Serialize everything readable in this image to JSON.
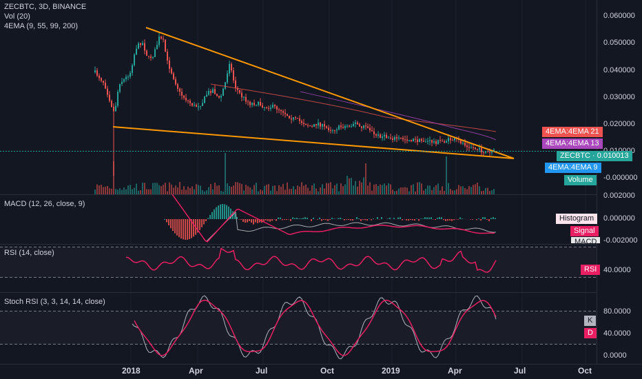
{
  "symbol_title": "ZECBTC, 3D, BINANCE",
  "indicators": {
    "vol": "Vol (20)",
    "ema": "4EMA (9, 55, 99, 200)",
    "macd": "MACD (12, 26, close, 9)",
    "rsi": "RSI (14, close)",
    "stoch": "Stoch RSI (3, 3, 14, 14, close)"
  },
  "price_axis": [
    "0.060000",
    "0.050000",
    "0.040000",
    "0.030000",
    "0.020000",
    "0.010000",
    "-0.000000"
  ],
  "macd_axis": [
    "0.002000",
    "0.000000",
    "-0.002000"
  ],
  "rsi_axis": [
    "40.0000"
  ],
  "stoch_axis": [
    "80.0000",
    "40.0000",
    "0.0000"
  ],
  "tags": {
    "ema21": "4EMA:4EMA 21",
    "ema13": "4EMA:4EMA 13",
    "last": "ZECBTC · 0.010013",
    "ema9": "4EMA:4EMA 9",
    "volume": "Volume",
    "histogram": "Histogram",
    "signal": "Signal",
    "macd": "MACD",
    "rsi": "RSI",
    "k": "K",
    "d": "D"
  },
  "time_axis": [
    "2018",
    "Apr",
    "Jul",
    "Oct",
    "2019",
    "Apr",
    "Jul",
    "Oct"
  ],
  "colors": {
    "background": "#131722",
    "up": "#26a69a",
    "down": "#ef5350",
    "trendline": "#ff9800",
    "ema21": "#ef5350",
    "ema13": "#ab47bc",
    "ema9": "#2196f3",
    "last": "#26a69a",
    "rsi": "#e91e63"
  }
}
